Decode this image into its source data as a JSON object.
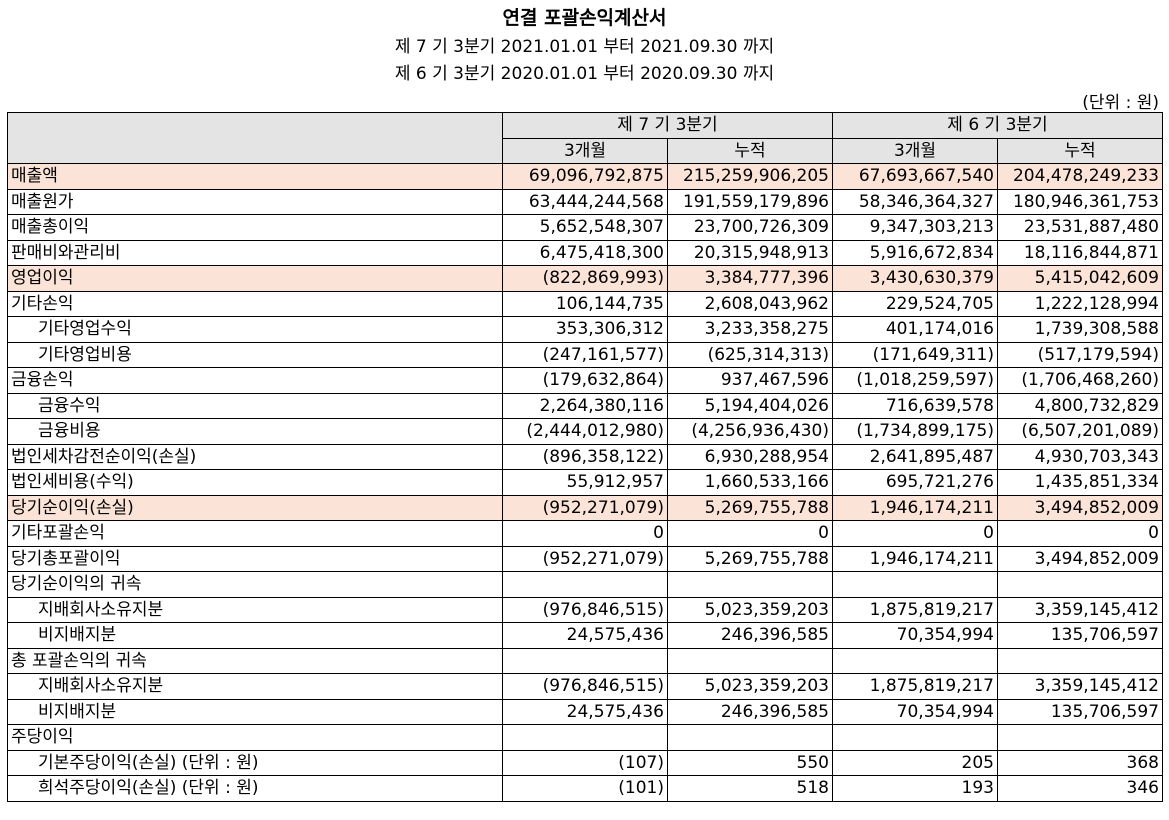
{
  "title": "연결 포괄손익계산서",
  "period_current": "제 7 기 3분기 2021.01.01 부터 2021.09.30 까지",
  "period_prior": "제 6 기 3분기 2020.01.01 부터 2020.09.30 까지",
  "unit": "(단위 : 원)",
  "header": {
    "current": "제 7 기 3분기",
    "prior": "제 6 기 3분기",
    "col_3m_a": "3개월",
    "col_cum_a": "누적",
    "col_3m_b": "3개월",
    "col_cum_b": "누적"
  },
  "rows": [
    {
      "label": "매출액",
      "v": [
        "69,096,792,875",
        "215,259,906,205",
        "67,693,667,540",
        "204,478,249,233"
      ]
    },
    {
      "label": "매출원가",
      "v": [
        "63,444,244,568",
        "191,559,179,896",
        "58,346,364,327",
        "180,946,361,753"
      ]
    },
    {
      "label": "매출총이익",
      "v": [
        "5,652,548,307",
        "23,700,726,309",
        "9,347,303,213",
        "23,531,887,480"
      ]
    },
    {
      "label": "판매비와관리비",
      "v": [
        "6,475,418,300",
        "20,315,948,913",
        "5,916,672,834",
        "18,116,844,871"
      ]
    },
    {
      "label": "영업이익",
      "v": [
        "(822,869,993)",
        "3,384,777,396",
        "3,430,630,379",
        "5,415,042,609"
      ]
    },
    {
      "label": "기타손익",
      "v": [
        "106,144,735",
        "2,608,043,962",
        "229,524,705",
        "1,222,128,994"
      ]
    },
    {
      "label": "기타영업수익",
      "v": [
        "353,306,312",
        "3,233,358,275",
        "401,174,016",
        "1,739,308,588"
      ]
    },
    {
      "label": "기타영업비용",
      "v": [
        "(247,161,577)",
        "(625,314,313)",
        "(171,649,311)",
        "(517,179,594)"
      ]
    },
    {
      "label": "금융손익",
      "v": [
        "(179,632,864)",
        "937,467,596",
        "(1,018,259,597)",
        "(1,706,468,260)"
      ]
    },
    {
      "label": "금융수익",
      "v": [
        "2,264,380,116",
        "5,194,404,026",
        "716,639,578",
        "4,800,732,829"
      ]
    },
    {
      "label": "금융비용",
      "v": [
        "(2,444,012,980)",
        "(4,256,936,430)",
        "(1,734,899,175)",
        "(6,507,201,089)"
      ]
    },
    {
      "label": "법인세차감전순이익(손실)",
      "v": [
        "(896,358,122)",
        "6,930,288,954",
        "2,641,895,487",
        "4,930,703,343"
      ]
    },
    {
      "label": "법인세비용(수익)",
      "v": [
        "55,912,957",
        "1,660,533,166",
        "695,721,276",
        "1,435,851,334"
      ]
    },
    {
      "label": "당기순이익(손실)",
      "v": [
        "(952,271,079)",
        "5,269,755,788",
        "1,946,174,211",
        "3,494,852,009"
      ]
    },
    {
      "label": "기타포괄손익",
      "v": [
        "0",
        "0",
        "0",
        "0"
      ]
    },
    {
      "label": "당기총포괄이익",
      "v": [
        "(952,271,079)",
        "5,269,755,788",
        "1,946,174,211",
        "3,494,852,009"
      ]
    },
    {
      "label": "당기순이익의 귀속",
      "v": [
        "",
        "",
        "",
        ""
      ]
    },
    {
      "label": "지배회사소유지분",
      "v": [
        "(976,846,515)",
        "5,023,359,203",
        "1,875,819,217",
        "3,359,145,412"
      ]
    },
    {
      "label": "비지배지분",
      "v": [
        "24,575,436",
        "246,396,585",
        "70,354,994",
        "135,706,597"
      ]
    },
    {
      "label": "총 포괄손익의 귀속",
      "v": [
        "",
        "",
        "",
        ""
      ]
    },
    {
      "label": "지배회사소유지분",
      "v": [
        "(976,846,515)",
        "5,023,359,203",
        "1,875,819,217",
        "3,359,145,412"
      ]
    },
    {
      "label": "비지배지분",
      "v": [
        "24,575,436",
        "246,396,585",
        "70,354,994",
        "135,706,597"
      ]
    },
    {
      "label": "주당이익",
      "v": [
        "",
        "",
        "",
        ""
      ]
    },
    {
      "label": "기본주당이익(손실) (단위 : 원)",
      "v": [
        "(107)",
        "550",
        "205",
        "368"
      ]
    },
    {
      "label": "희석주당이익(손실) (단위 : 원)",
      "v": [
        "(101)",
        "518",
        "193",
        "346"
      ]
    }
  ]
}
